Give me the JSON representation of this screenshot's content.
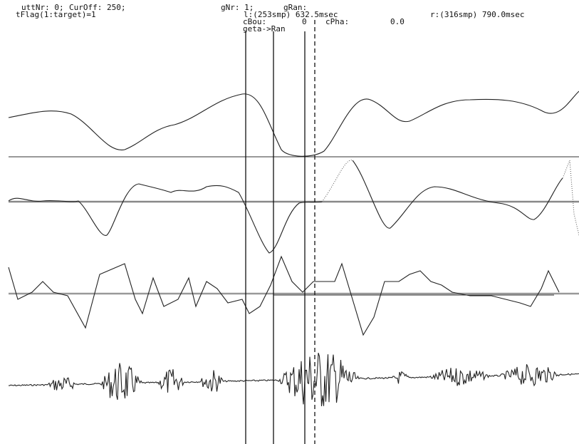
{
  "header": {
    "line1": [
      "uttNr: 0;",
      "CurOff: 250;",
      "gNr: 1;",
      "gRan:"
    ],
    "line2": [
      "tFlag(1:target)=1",
      "l:(253smp) 632.5msec",
      "r:(316smp) 790.0msec"
    ],
    "line3": [
      "cBou:",
      "0",
      "cPha:",
      "0.0"
    ],
    "line4": [
      "geta->Ran"
    ]
  }
}
